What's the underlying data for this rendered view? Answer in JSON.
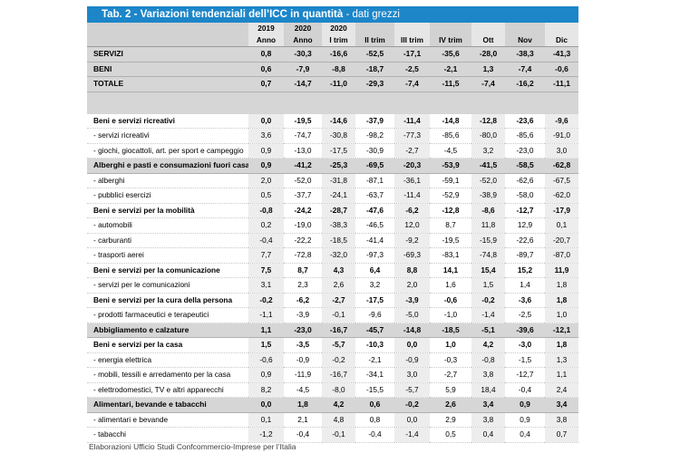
{
  "title": {
    "main": "Tab. 2 - Variazioni tendenziali dell’ICC in quantità",
    "sub": " - dati grezzi"
  },
  "header": {
    "years": [
      "2019",
      "2020",
      "2020",
      "",
      "",
      "",
      "",
      "",
      ""
    ],
    "periods": [
      "Anno",
      "Anno",
      "I trim",
      "II trim",
      "III trim",
      "IV trim",
      "Ott",
      "Nov",
      "Dic"
    ]
  },
  "rows": [
    {
      "label": "SERVIZI",
      "values": [
        "0,8",
        "-30,3",
        "-16,6",
        "-52,5",
        "-17,1",
        "-35,6",
        "-28,0",
        "-38,3",
        "-41,3"
      ]
    },
    {
      "label": "BENI",
      "values": [
        "0,6",
        "-7,9",
        "-8,8",
        "-18,7",
        "-2,5",
        "-2,1",
        "1,3",
        "-7,4",
        "-0,6"
      ]
    },
    {
      "label": "TOTALE",
      "values": [
        "0,7",
        "-14,7",
        "-11,0",
        "-29,3",
        "-7,4",
        "-11,5",
        "-7,4",
        "-16,2",
        "-11,1"
      ]
    },
    {
      "label": "Beni e servizi ricreativi",
      "values": [
        "0,0",
        "-19,5",
        "-14,6",
        "-37,9",
        "-11,4",
        "-14,8",
        "-12,8",
        "-23,6",
        "-9,6"
      ]
    },
    {
      "label": "- servizi ricreativi",
      "values": [
        "3,6",
        "-74,7",
        "-30,8",
        "-98,2",
        "-77,3",
        "-85,6",
        "-80,0",
        "-85,6",
        "-91,0"
      ]
    },
    {
      "label": "- giochi, giocattoli, art. per sport e campeggio",
      "values": [
        "0,9",
        "-13,0",
        "-17,5",
        "-30,9",
        "-2,7",
        "-4,5",
        "3,2",
        "-23,0",
        "3,0"
      ]
    },
    {
      "label": "Alberghi e pasti e consumazioni fuori casa",
      "values": [
        "0,9",
        "-41,2",
        "-25,3",
        "-69,5",
        "-20,3",
        "-53,9",
        "-41,5",
        "-58,5",
        "-62,8"
      ]
    },
    {
      "label": "- alberghi",
      "values": [
        "2,0",
        "-52,0",
        "-31,8",
        "-87,1",
        "-36,1",
        "-59,1",
        "-52,0",
        "-62,6",
        "-67,5"
      ]
    },
    {
      "label": "- pubblici esercizi",
      "values": [
        "0,5",
        "-37,7",
        "-24,1",
        "-63,7",
        "-11,4",
        "-52,9",
        "-38,9",
        "-58,0",
        "-62,0"
      ]
    },
    {
      "label": "Beni e servizi per la mobilità",
      "values": [
        "-0,8",
        "-24,2",
        "-28,7",
        "-47,6",
        "-6,2",
        "-12,8",
        "-8,6",
        "-12,7",
        "-17,9"
      ]
    },
    {
      "label": "- automobili",
      "values": [
        "0,2",
        "-19,0",
        "-38,3",
        "-46,5",
        "12,0",
        "8,7",
        "11,8",
        "12,9",
        "0,1"
      ]
    },
    {
      "label": "- carburanti",
      "values": [
        "-0,4",
        "-22,2",
        "-18,5",
        "-41,4",
        "-9,2",
        "-19,5",
        "-15,9",
        "-22,6",
        "-20,7"
      ]
    },
    {
      "label": "- trasporti aerei",
      "values": [
        "7,7",
        "-72,8",
        "-32,0",
        "-97,3",
        "-69,3",
        "-83,1",
        "-74,8",
        "-89,7",
        "-87,0"
      ]
    },
    {
      "label": "Beni e servizi per la comunicazione",
      "values": [
        "7,5",
        "8,7",
        "4,3",
        "6,4",
        "8,8",
        "14,1",
        "15,4",
        "15,2",
        "11,9"
      ]
    },
    {
      "label": "- servizi per le comunicazioni",
      "values": [
        "3,1",
        "2,3",
        "2,6",
        "3,2",
        "2,0",
        "1,6",
        "1,5",
        "1,4",
        "1,8"
      ]
    },
    {
      "label": "Beni e servizi per la cura della persona",
      "values": [
        "-0,2",
        "-6,2",
        "-2,7",
        "-17,5",
        "-3,9",
        "-0,6",
        "-0,2",
        "-3,6",
        "1,8"
      ]
    },
    {
      "label": "- prodotti farmaceutici e terapeutici",
      "values": [
        "-1,1",
        "-3,9",
        "-0,1",
        "-9,6",
        "-5,0",
        "-1,0",
        "-1,4",
        "-2,5",
        "1,0"
      ]
    },
    {
      "label": "Abbigliamento e calzature",
      "values": [
        "1,1",
        "-23,0",
        "-16,7",
        "-45,7",
        "-14,8",
        "-18,5",
        "-5,1",
        "-39,6",
        "-12,1"
      ]
    },
    {
      "label": "Beni e servizi per la casa",
      "values": [
        "1,5",
        "-3,5",
        "-5,7",
        "-10,3",
        "0,0",
        "1,0",
        "4,2",
        "-3,0",
        "1,8"
      ]
    },
    {
      "label": "- energia elettrica",
      "values": [
        "-0,6",
        "-0,9",
        "-0,2",
        "-2,1",
        "-0,9",
        "-0,3",
        "-0,8",
        "-1,5",
        "1,3"
      ]
    },
    {
      "label": "- mobili, tessili e arredamento per la casa",
      "values": [
        "0,9",
        "-11,9",
        "-16,7",
        "-34,1",
        "3,0",
        "-2,7",
        "3,8",
        "-12,7",
        "1,1"
      ]
    },
    {
      "label": "- elettrodomestici, TV e altri apparecchi",
      "values": [
        "8,2",
        "-4,5",
        "-8,0",
        "-15,5",
        "-5,7",
        "5,9",
        "18,4",
        "-0,4",
        "2,4"
      ]
    },
    {
      "label": "Alimentari, bevande e tabacchi",
      "values": [
        "0,0",
        "1,8",
        "4,2",
        "0,6",
        "-0,2",
        "2,6",
        "3,4",
        "0,9",
        "3,4"
      ]
    },
    {
      "label": "- alimentari e bevande",
      "values": [
        "0,1",
        "2,1",
        "4,8",
        "0,8",
        "0,0",
        "2,9",
        "3,8",
        "0,9",
        "3,8"
      ]
    },
    {
      "label": "- tabacchi",
      "values": [
        "-1,2",
        "-0,4",
        "-0,1",
        "-0,4",
        "-1,4",
        "0,5",
        "0,4",
        "0,4",
        "0,7"
      ]
    }
  ],
  "footer": "Elaborazioni Ufficio Studi Confcommercio-Imprese per l’Italia"
}
